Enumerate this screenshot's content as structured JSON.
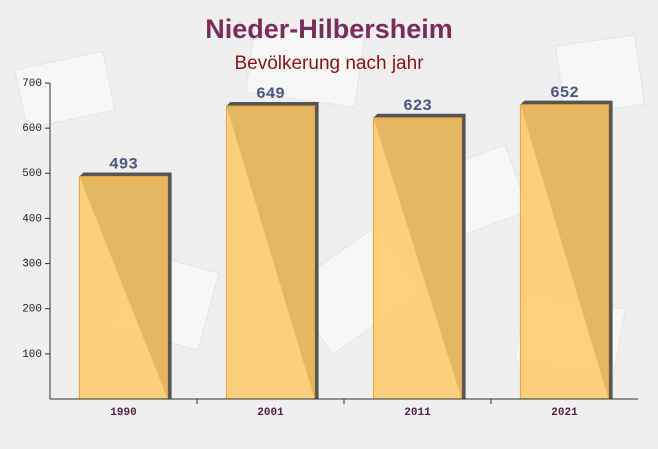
{
  "chart_data": {
    "type": "bar",
    "title": "Nieder-Hilbersheim",
    "subtitle": "Bevölkerung nach jahr",
    "categories": [
      "1990",
      "2001",
      "2011",
      "2021"
    ],
    "values": [
      493,
      649,
      623,
      652
    ],
    "color": "#ffc966",
    "ylim": [
      0,
      700
    ],
    "yticks": [
      100,
      200,
      300,
      400,
      500,
      600,
      700
    ],
    "grid": false
  }
}
